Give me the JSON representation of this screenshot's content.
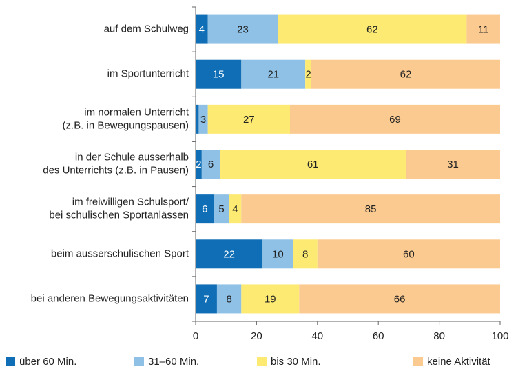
{
  "chart_data": {
    "type": "stacked_barh",
    "categories": [
      [
        "auf dem Schulweg"
      ],
      [
        "im Sportunterricht"
      ],
      [
        "im normalen Unterricht",
        "(z.B. in Bewegungspausen)"
      ],
      [
        "in der Schule ausserhalb",
        "des Unterrichts (z.B. in Pausen)"
      ],
      [
        "im freiwilligen Schulsport/",
        "bei schulischen Sportanlässen"
      ],
      [
        "beim ausserschulischen Sport"
      ],
      [
        "bei anderen Bewegungsaktivitäten"
      ]
    ],
    "series": [
      {
        "name": "über 60 Min.",
        "color": "#0f6eb5",
        "label_color": "#ffffff",
        "values": [
          4,
          15,
          1,
          2,
          6,
          22,
          7
        ]
      },
      {
        "name": "31–60 Min.",
        "color": "#8ec1e5",
        "label_color": "#222222",
        "values": [
          23,
          21,
          3,
          6,
          5,
          10,
          8
        ]
      },
      {
        "name": "bis 30 Min.",
        "color": "#fdea72",
        "label_color": "#222222",
        "values": [
          62,
          2,
          27,
          61,
          4,
          8,
          19
        ]
      },
      {
        "name": "keine Aktivität",
        "color": "#fbca90",
        "label_color": "#222222",
        "values": [
          11,
          62,
          69,
          31,
          85,
          60,
          66
        ]
      }
    ],
    "xlim": [
      0,
      100
    ],
    "xticks": [
      0,
      20,
      40,
      60,
      80,
      100
    ]
  }
}
